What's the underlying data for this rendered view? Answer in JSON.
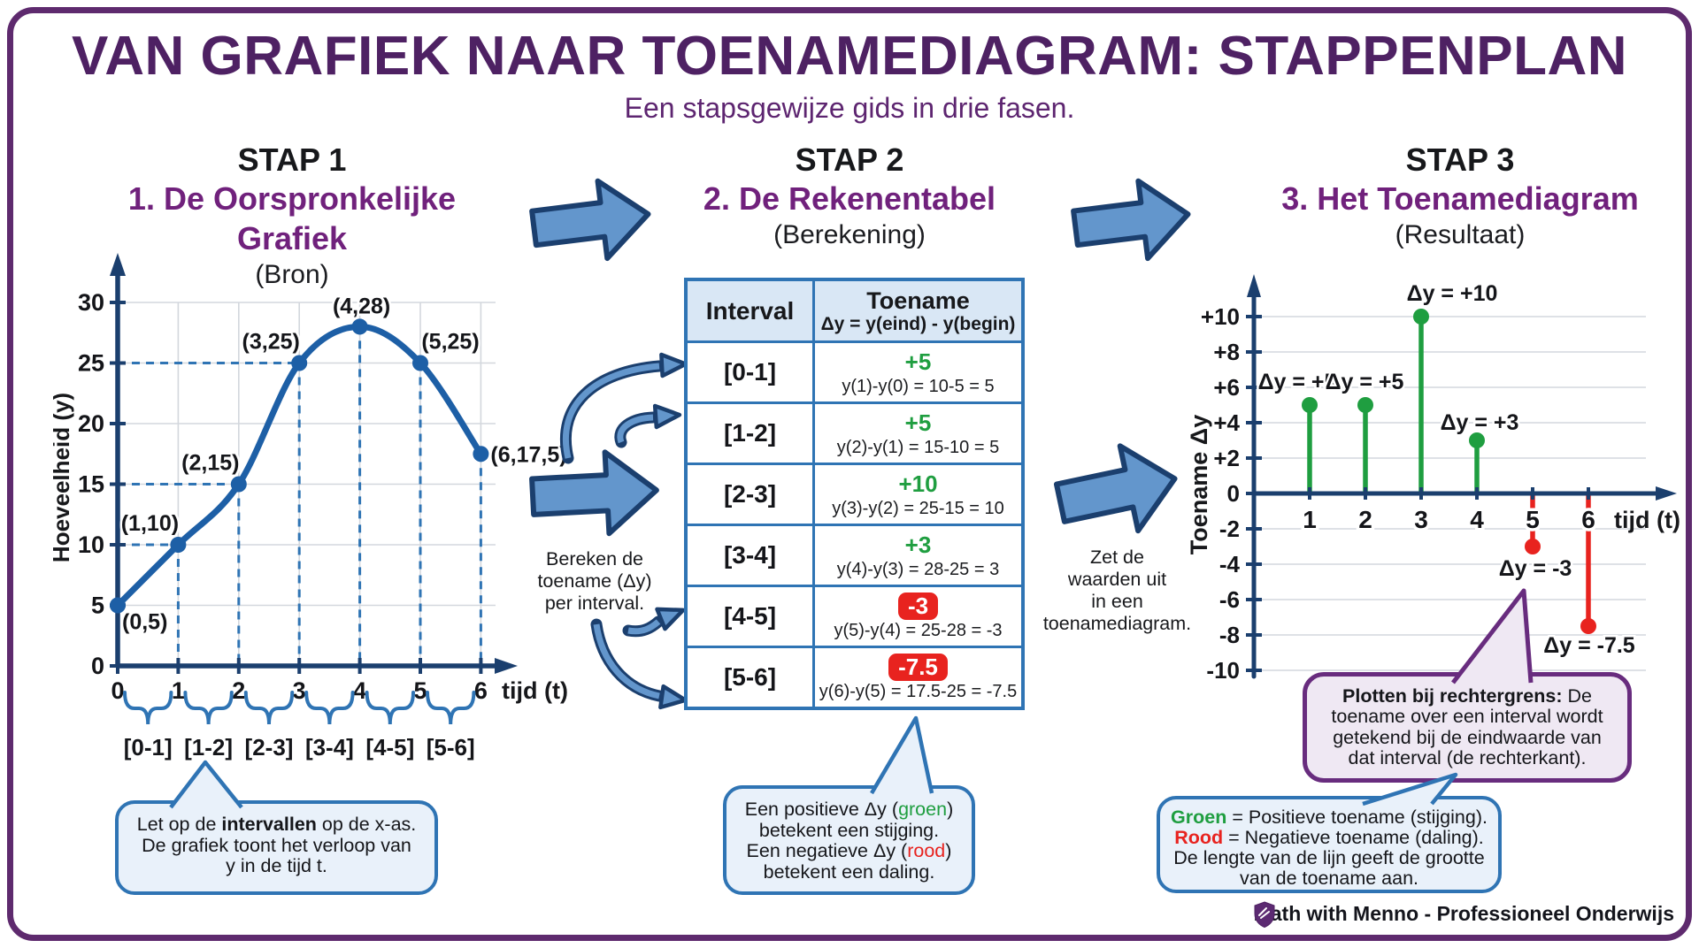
{
  "header": {
    "title": "VAN GRAFIEK NAAR TOENAMEDIAGRAM: STAPPENPLAN",
    "subtitle": "Een stapsgewijze gids in drie fasen."
  },
  "steps": [
    {
      "kicker": "STAP 1",
      "title": "1. De Oorspronkelijke Grafiek",
      "subtitle": "(Bron)"
    },
    {
      "kicker": "STAP 2",
      "title": "2. De Rekenentabel",
      "subtitle": "(Berekening)"
    },
    {
      "kicker": "STAP 3",
      "title": "3. Het Toenamediagram",
      "subtitle": "(Resultaat)"
    }
  ],
  "chart_data": [
    {
      "type": "line",
      "name": "oorspronkelijke-grafiek",
      "x": [
        0,
        1,
        2,
        3,
        4,
        5,
        6
      ],
      "y": [
        5,
        10,
        15,
        25,
        28,
        25,
        17.5
      ],
      "point_labels": [
        "(0,5)",
        "(1,10)",
        "(2,15)",
        "(3,25)",
        "(4,28)",
        "(5,25)",
        "(6,17,5)"
      ],
      "xlabel": "tijd (t)",
      "ylabel": "Hoeveelheid (y)",
      "xticks": [
        0,
        1,
        2,
        3,
        4,
        5,
        6
      ],
      "yticks": [
        0,
        5,
        10,
        15,
        20,
        25,
        30
      ],
      "ylim": [
        0,
        32
      ],
      "grid": true,
      "intervals": [
        "[0-1]",
        "[1-2]",
        "[2-3]",
        "[3-4]",
        "[4-5]",
        "[5-6]"
      ],
      "line_color": "#1d5fa6",
      "dash_color": "#2f74b4"
    },
    {
      "type": "stem",
      "name": "toenamediagram",
      "x": [
        1,
        2,
        3,
        4,
        5,
        6
      ],
      "values": [
        5,
        5,
        10,
        3,
        -3,
        -7.5
      ],
      "labels": [
        "Δy = +5",
        "Δy = +5",
        "Δy = +10",
        "Δy = +3",
        "Δy = -3",
        "Δy = -7.5"
      ],
      "xlabel": "tijd (t)",
      "ylabel": "Toename Δy",
      "ytick_values": [
        10,
        8,
        6,
        4,
        2,
        0,
        -2,
        -4,
        -6,
        -8,
        -10
      ],
      "ytick_labels": [
        "+10",
        "+8",
        "+6",
        "+4",
        "+2",
        "0",
        "-2",
        "-4",
        "-6",
        "-8",
        "-10"
      ],
      "ylim": [
        -10,
        10
      ],
      "grid": true,
      "positive_color": "#1f9e40",
      "negative_color": "#e8231f"
    }
  ],
  "table": {
    "col1_header": "Interval",
    "col2_header": "Toename",
    "col2_subheader": "Δy = y(eind) - y(begin)",
    "rows": [
      {
        "interval": "[0-1]",
        "delta": "+5",
        "formula": "y(1)-y(0) = 10-5 = 5",
        "sign": "positive"
      },
      {
        "interval": "[1-2]",
        "delta": "+5",
        "formula": "y(2)-y(1) = 15-10 = 5",
        "sign": "positive"
      },
      {
        "interval": "[2-3]",
        "delta": "+10",
        "formula": "y(3)-y(2) = 25-15 = 10",
        "sign": "positive"
      },
      {
        "interval": "[3-4]",
        "delta": "+3",
        "formula": "y(4)-y(3) = 28-25 = 3",
        "sign": "positive"
      },
      {
        "interval": "[4-5]",
        "delta": "-3",
        "formula": "y(5)-y(4) = 25-28 = -3",
        "sign": "negative"
      },
      {
        "interval": "[5-6]",
        "delta": "-7.5",
        "formula": "y(6)-y(5) = 17.5-25 = -7.5",
        "sign": "negative"
      }
    ]
  },
  "notes": {
    "left_l1": "Bereken de",
    "left_l2": "toename (Δy)",
    "left_l3": "per interval.",
    "right_l1": "Zet de",
    "right_l2": "waarden uit",
    "right_l3": "in een",
    "right_l4": "toenamediagram."
  },
  "callouts": {
    "step1": {
      "l1a": "Let op de ",
      "l1b": "intervallen",
      "l1c": " op de x-as.",
      "l2": "De grafiek toont het verloop van",
      "l3": "y in de tijd t."
    },
    "step2": {
      "l1a": "Een positieve Δy (",
      "l1b": "groen",
      "l1c": ")",
      "l2": "betekent een stijging.",
      "l3a": "Een negatieve Δy (",
      "l3b": "rood",
      "l3c": ")",
      "l4": "betekent een daling."
    },
    "step3_purple": {
      "l1b": "Plotten bij rechtergrens:",
      "l1": " De",
      "l2": "toename over een interval wordt",
      "l3": "getekend bij de eindwaarde van",
      "l4": "dat interval (de rechterkant)."
    },
    "step3_legend": {
      "l1b": "Groen",
      "l1": " = Positieve toename (stijging).",
      "l2b": "Rood",
      "l2": " = Negatieve toename (daling).",
      "l3": "De lengte van de lijn geeft de grootte",
      "l4": "van de toename aan."
    }
  },
  "footer": {
    "brand": "Math with Menno - Professioneel Onderwijs"
  },
  "colors": {
    "title_purple": "#4e2163",
    "step_purple": "#70217c",
    "navy": "#1b3f6e",
    "curve_blue": "#1d5fa6",
    "dash_blue": "#2f74b4",
    "arrow_fill": "#6396cc",
    "green": "#1f9e40",
    "red": "#e8231f",
    "grid_gray": "#d3d7dd",
    "bubble_blue_bg": "#e9f1fa",
    "bubble_purple_bg": "#efe8f3",
    "bubble_purple_border": "#682c7e",
    "table_header_bg": "#d9e7f5"
  }
}
